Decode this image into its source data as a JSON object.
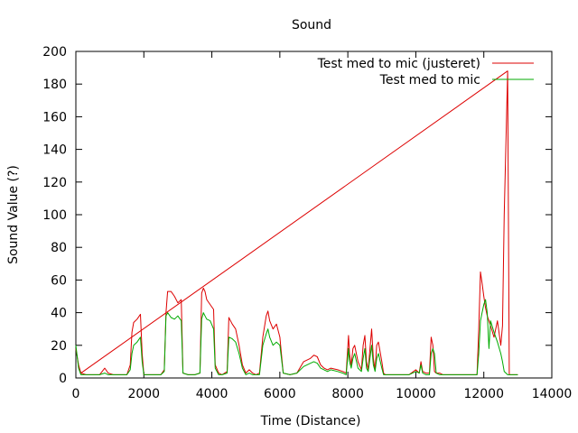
{
  "chart_data": {
    "type": "line",
    "title": "Sound",
    "xlabel": "Time (Distance)",
    "ylabel": "Sound Value (?)",
    "xlim": [
      0,
      14000
    ],
    "ylim": [
      0,
      200
    ],
    "x_ticks": [
      0,
      2000,
      4000,
      6000,
      8000,
      10000,
      12000,
      14000
    ],
    "y_ticks": [
      0,
      20,
      40,
      60,
      80,
      100,
      120,
      140,
      160,
      180,
      200
    ],
    "grid": false,
    "legend_position": "top-right",
    "series": [
      {
        "name": "Test med to mic (justeret)",
        "color": "#dd0000",
        "x": [
          0,
          80,
          150,
          300,
          700,
          850,
          950,
          1100,
          1500,
          1600,
          1650,
          1700,
          1800,
          1900,
          1950,
          2000,
          2200,
          2500,
          2600,
          2650,
          2700,
          2800,
          2900,
          3000,
          3100,
          3150,
          3300,
          3500,
          3650,
          3700,
          3750,
          3800,
          3850,
          3950,
          4050,
          4100,
          4200,
          4300,
          4450,
          4500,
          4600,
          4700,
          4800,
          4900,
          5000,
          5100,
          5200,
          5300,
          5400,
          5500,
          5600,
          5650,
          5700,
          5800,
          5900,
          6000,
          6100,
          6300,
          6500,
          6700,
          6900,
          7000,
          7100,
          7200,
          7300,
          7400,
          7500,
          7700,
          7850,
          7950,
          8020,
          8050,
          8100,
          8150,
          8200,
          8300,
          8400,
          8450,
          8500,
          8550,
          8600,
          8700,
          8750,
          8800,
          8850,
          8900,
          9000,
          9050,
          9100,
          9200,
          9400,
          9600,
          9800,
          10000,
          10100,
          10150,
          10200,
          10300,
          10400,
          10450,
          10500,
          10550,
          10600,
          10700,
          10800,
          11000,
          11200,
          11400,
          11600,
          11800,
          11850,
          11900,
          11950,
          12000,
          12050,
          12100,
          12150,
          12200,
          12300,
          12400,
          12500,
          12550,
          12600,
          12700,
          12750,
          12800,
          13000
        ],
        "y": [
          18,
          8,
          3,
          2,
          2,
          6,
          3,
          2,
          2,
          8,
          28,
          34,
          36,
          39,
          15,
          2,
          2,
          2,
          5,
          40,
          53,
          53,
          50,
          46,
          48,
          3,
          2,
          2,
          3,
          52,
          55,
          53,
          48,
          45,
          42,
          8,
          3,
          2,
          4,
          37,
          33,
          30,
          20,
          8,
          3,
          5,
          3,
          2,
          3,
          25,
          38,
          41,
          35,
          30,
          33,
          25,
          3,
          2,
          3,
          10,
          12,
          14,
          13,
          8,
          6,
          5,
          6,
          5,
          4,
          3,
          26,
          15,
          8,
          18,
          20,
          10,
          5,
          20,
          26,
          10,
          5,
          30,
          12,
          5,
          20,
          22,
          10,
          3,
          2,
          2,
          2,
          2,
          2,
          5,
          3,
          10,
          4,
          3,
          3,
          25,
          20,
          4,
          3,
          3,
          2,
          2,
          2,
          2,
          2,
          2,
          30,
          65,
          58,
          50,
          43,
          38,
          35,
          32,
          25,
          35,
          20,
          32,
          100,
          188,
          2,
          2,
          2
        ]
      },
      {
        "name": "Test med to mic",
        "color": "#00aa00",
        "x": [
          0,
          80,
          150,
          300,
          700,
          850,
          950,
          1100,
          1500,
          1600,
          1650,
          1700,
          1800,
          1900,
          1950,
          2000,
          2200,
          2500,
          2600,
          2650,
          2700,
          2800,
          2900,
          3000,
          3100,
          3150,
          3300,
          3500,
          3650,
          3700,
          3750,
          3800,
          3850,
          3950,
          4050,
          4100,
          4200,
          4300,
          4450,
          4500,
          4600,
          4700,
          4800,
          4900,
          5000,
          5100,
          5200,
          5300,
          5400,
          5500,
          5600,
          5650,
          5700,
          5800,
          5900,
          6000,
          6100,
          6300,
          6500,
          6700,
          6900,
          7000,
          7100,
          7200,
          7300,
          7400,
          7500,
          7700,
          7850,
          7950,
          8020,
          8050,
          8100,
          8150,
          8200,
          8300,
          8400,
          8450,
          8500,
          8550,
          8600,
          8700,
          8750,
          8800,
          8850,
          8900,
          9000,
          9050,
          9100,
          9200,
          9400,
          9600,
          9800,
          10000,
          10100,
          10150,
          10200,
          10300,
          10400,
          10450,
          10500,
          10550,
          10600,
          10700,
          10800,
          11000,
          11200,
          11400,
          11600,
          11800,
          11850,
          11900,
          11950,
          12000,
          12050,
          12100,
          12150,
          12200,
          12300,
          12400,
          12500,
          12550,
          12600,
          12700,
          12750,
          12800,
          13000
        ],
        "y": [
          20,
          6,
          2,
          2,
          2,
          3,
          2,
          2,
          2,
          5,
          15,
          20,
          22,
          25,
          10,
          2,
          2,
          2,
          4,
          38,
          40,
          37,
          36,
          38,
          35,
          3,
          2,
          2,
          3,
          36,
          40,
          38,
          36,
          35,
          30,
          6,
          2,
          2,
          3,
          25,
          24,
          22,
          15,
          6,
          2,
          3,
          2,
          2,
          2,
          20,
          27,
          30,
          25,
          20,
          22,
          20,
          3,
          2,
          3,
          7,
          9,
          10,
          9,
          6,
          5,
          4,
          5,
          4,
          3,
          2,
          18,
          10,
          6,
          12,
          15,
          6,
          4,
          12,
          18,
          6,
          4,
          20,
          8,
          4,
          12,
          15,
          6,
          2,
          2,
          2,
          2,
          2,
          2,
          4,
          3,
          8,
          3,
          2,
          2,
          15,
          18,
          15,
          3,
          2,
          2,
          2,
          2,
          2,
          2,
          2,
          15,
          35,
          40,
          45,
          48,
          40,
          18,
          35,
          28,
          22,
          15,
          10,
          4,
          2,
          2,
          2,
          2
        ]
      }
    ]
  }
}
